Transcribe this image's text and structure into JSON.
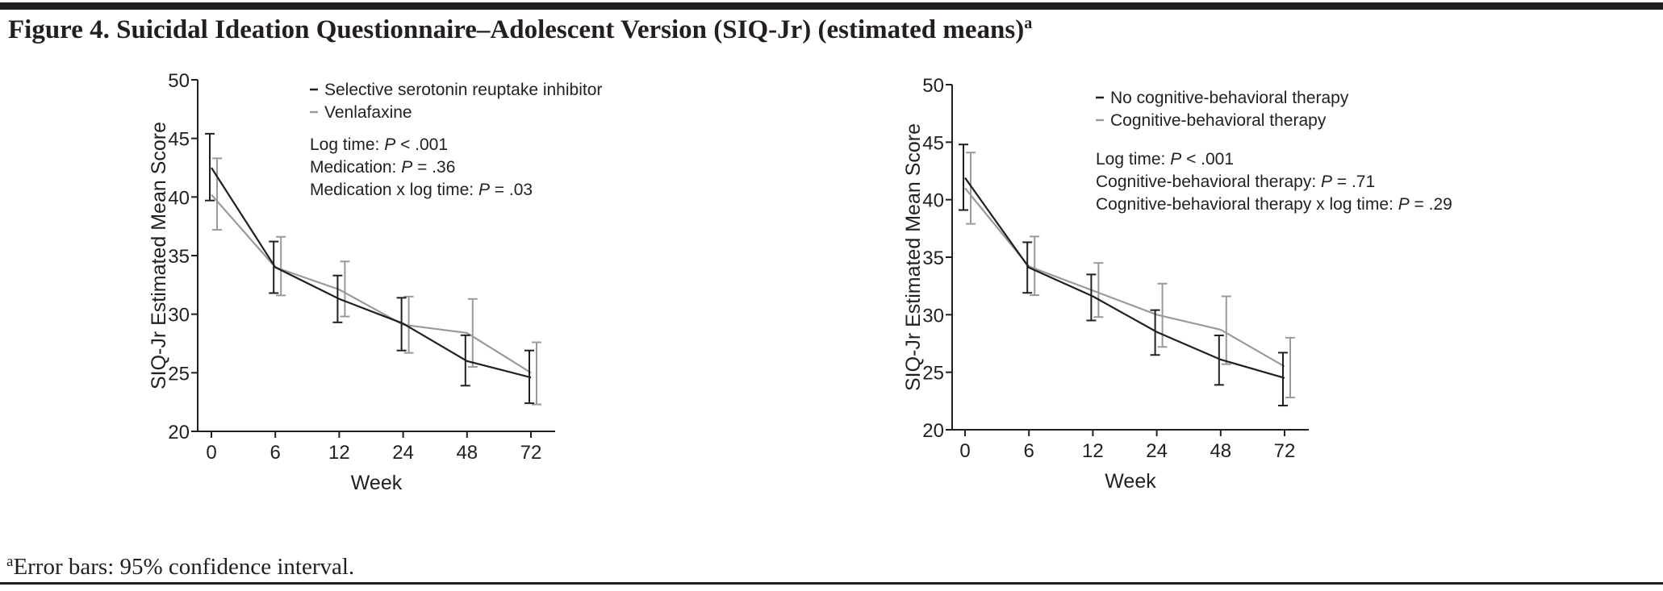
{
  "figure": {
    "title": "Figure 4. Suicidal Ideation Questionnaire–Adolescent Version (SIQ-Jr) (estimated means)",
    "title_sup": "a",
    "footnote_sup": "a",
    "footnote": "Error bars: 95% confidence interval."
  },
  "colors": {
    "dark": "#231f20",
    "light": "#9a9a9a",
    "rule": "#231f20"
  },
  "chart_data": [
    {
      "type": "line",
      "xlabel": "Week",
      "ylabel": "SIQ-Jr Estimated Mean Score",
      "categories": [
        "0",
        "6",
        "12",
        "24",
        "48",
        "72"
      ],
      "ylim": [
        20,
        50
      ],
      "yticks": [
        "20",
        "25",
        "30",
        "35",
        "40",
        "45",
        "50"
      ],
      "grid": false,
      "legend_position": "top-right",
      "series": [
        {
          "name": "Selective serotonin reuptake inhibitor",
          "color": "#231f20",
          "values": [
            42.5,
            34.0,
            31.3,
            29.2,
            26.0,
            24.6
          ],
          "ci_low": [
            39.7,
            31.8,
            29.3,
            26.9,
            23.9,
            22.4
          ],
          "ci_high": [
            45.4,
            36.2,
            33.3,
            31.4,
            28.2,
            26.9
          ]
        },
        {
          "name": "Venlafaxine",
          "color": "#9a9a9a",
          "values": [
            40.2,
            34.0,
            32.1,
            29.1,
            28.4,
            25.0
          ],
          "ci_low": [
            37.2,
            31.6,
            29.8,
            26.7,
            25.5,
            22.3
          ],
          "ci_high": [
            43.3,
            36.6,
            34.5,
            31.5,
            31.3,
            27.6
          ]
        }
      ],
      "annotations": [
        {
          "label": "Log time: ",
          "p": "P",
          "value": " < .001"
        },
        {
          "label": "Medication: ",
          "p": "P",
          "value": " = .36"
        },
        {
          "label": "Medication x log time: ",
          "p": "P",
          "value": " = .03"
        }
      ]
    },
    {
      "type": "line",
      "xlabel": "Week",
      "ylabel": "SIQ-Jr Estimated Mean Score",
      "categories": [
        "0",
        "6",
        "12",
        "24",
        "48",
        "72"
      ],
      "ylim": [
        20,
        50
      ],
      "yticks": [
        "20",
        "25",
        "30",
        "35",
        "40",
        "45",
        "50"
      ],
      "grid": false,
      "legend_position": "top-right",
      "series": [
        {
          "name": "No cognitive-behavioral therapy",
          "color": "#231f20",
          "values": [
            41.9,
            34.1,
            31.6,
            28.5,
            26.1,
            24.5
          ],
          "ci_low": [
            39.1,
            31.9,
            29.5,
            26.5,
            23.9,
            22.1
          ],
          "ci_high": [
            44.8,
            36.3,
            33.5,
            30.4,
            28.2,
            26.7
          ]
        },
        {
          "name": "Cognitive-behavioral therapy",
          "color": "#9a9a9a",
          "values": [
            41.0,
            34.2,
            32.1,
            30.0,
            28.7,
            25.5
          ],
          "ci_low": [
            37.9,
            31.7,
            29.8,
            27.2,
            25.7,
            22.8
          ],
          "ci_high": [
            44.1,
            36.8,
            34.5,
            32.7,
            31.6,
            28.0
          ]
        }
      ],
      "annotations": [
        {
          "label": "Log time: ",
          "p": "P",
          "value": " < .001"
        },
        {
          "label": "Cognitive-behavioral therapy: ",
          "p": "P",
          "value": " = .71"
        },
        {
          "label": "Cognitive-behavioral therapy x log time: ",
          "p": "P",
          "value": " = .29"
        }
      ]
    }
  ]
}
